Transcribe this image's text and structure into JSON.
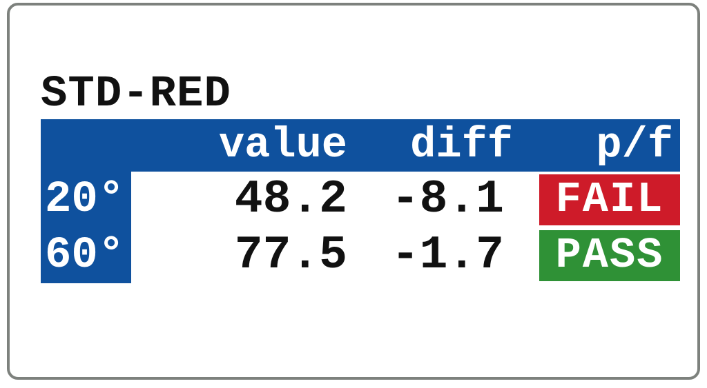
{
  "screen": {
    "title": "STD-RED"
  },
  "table": {
    "columns": [
      "value",
      "diff",
      "p/f"
    ],
    "rows": [
      {
        "angle": "20°",
        "value": "48.2",
        "diff": "-8.1",
        "pf": "FAIL",
        "pf_color": "#ce1b29"
      },
      {
        "angle": "60°",
        "value": "77.5",
        "diff": "-1.7",
        "pf": "PASS",
        "pf_color": "#2f9136"
      }
    ]
  },
  "colors": {
    "header_blue": "#0f519e",
    "fail_red": "#ce1b29",
    "pass_green": "#2f9136",
    "border_grey": "#7d817d",
    "text_black": "#111111"
  }
}
